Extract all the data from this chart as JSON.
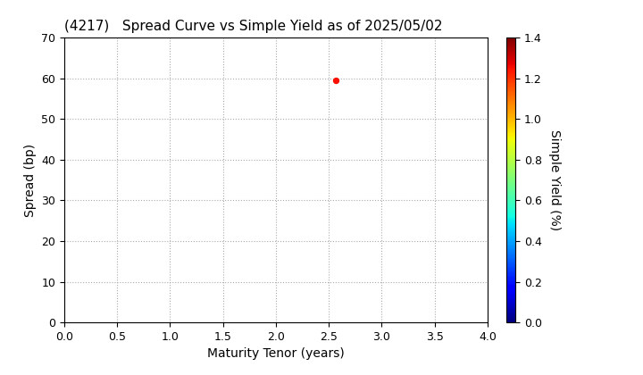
{
  "title": "(4217)   Spread Curve vs Simple Yield as of 2025/05/02",
  "xlabel": "Maturity Tenor (years)",
  "ylabel": "Spread (bp)",
  "colorbar_label": "Simple Yield (%)",
  "xlim": [
    0.0,
    4.0
  ],
  "ylim": [
    0,
    70
  ],
  "xticks": [
    0.0,
    0.5,
    1.0,
    1.5,
    2.0,
    2.5,
    3.0,
    3.5,
    4.0
  ],
  "yticks": [
    0,
    10,
    20,
    30,
    40,
    50,
    60,
    70
  ],
  "colorbar_ticks": [
    0.0,
    0.2,
    0.4,
    0.6,
    0.8,
    1.0,
    1.2,
    1.4
  ],
  "scatter_x": [
    2.57
  ],
  "scatter_y": [
    59.5
  ],
  "scatter_color": [
    1.25
  ],
  "scatter_size": 18,
  "cmap": "jet",
  "clim": [
    0.0,
    1.4
  ],
  "background_color": "#ffffff",
  "grid_color": "#aaaaaa",
  "title_fontsize": 11,
  "axis_fontsize": 10,
  "tick_fontsize": 9,
  "colorbar_fontsize": 10
}
